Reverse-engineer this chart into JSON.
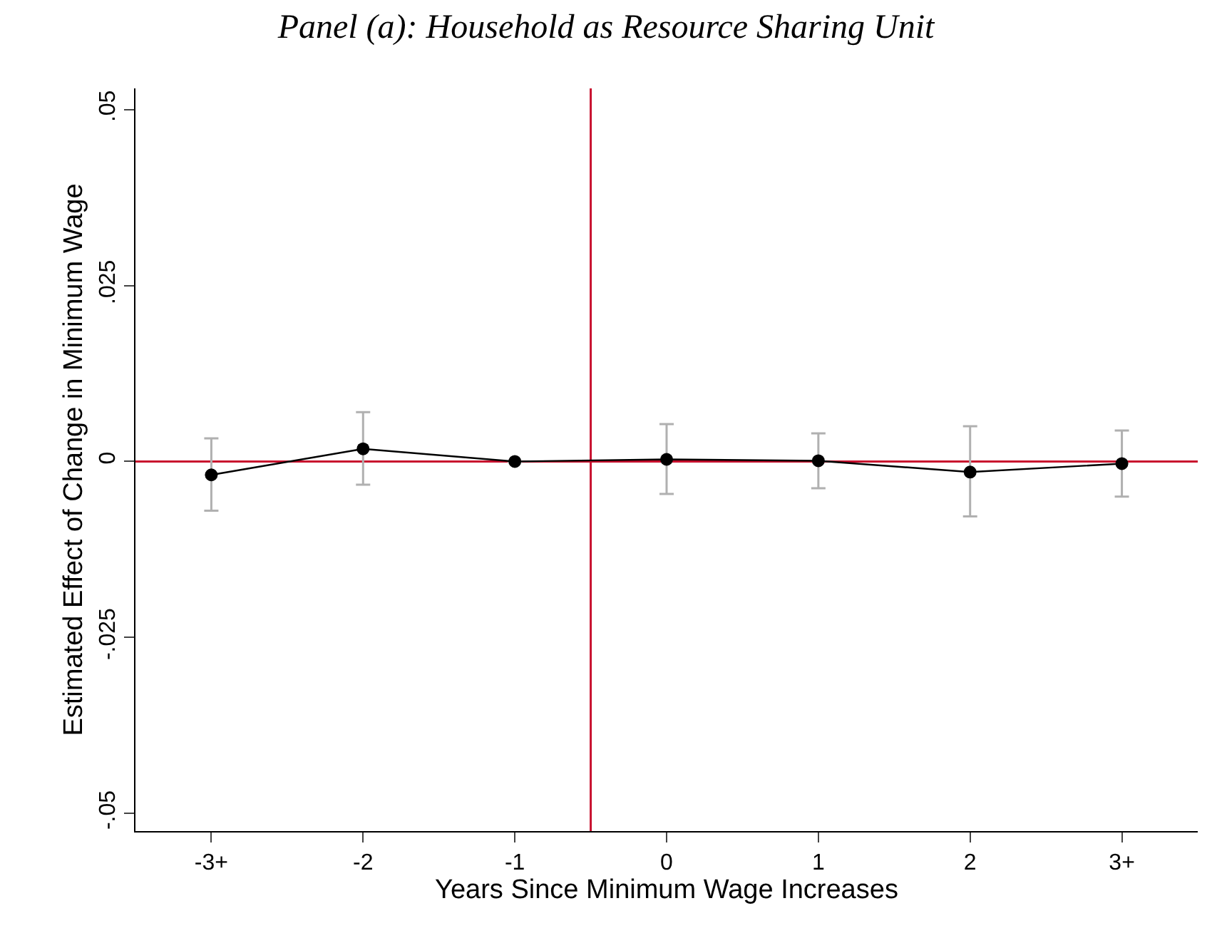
{
  "chart_data": {
    "type": "line",
    "title": "Panel (a): Household as Resource Sharing Unit",
    "xlabel": "Years Since Minimum Wage Increases",
    "ylabel": "Estimated Effect of Change in Minimum Wage",
    "x": [
      -3,
      -2,
      -1,
      0,
      1,
      2,
      3
    ],
    "series": [
      {
        "color": "#000000",
        "values": [
          -0.0019,
          0.0018,
          0,
          0.0003,
          0.0001,
          -0.0015,
          -0.0003
        ],
        "errors": [
          [
            -0.007,
            0.0033
          ],
          [
            -0.0033,
            0.007
          ],
          null,
          [
            -0.0046,
            0.0053
          ],
          [
            -0.0038,
            0.004
          ],
          [
            -0.0078,
            0.005
          ],
          [
            -0.005,
            0.0044
          ]
        ]
      }
    ],
    "marker": "circle",
    "line_style": "solid",
    "grid": false,
    "xlim": [
      -3.5,
      3.5
    ],
    "ylim": [
      -0.0525,
      0.053
    ],
    "xticks": [
      {
        "value": -3,
        "label": "-3+"
      },
      -2,
      -1,
      0,
      1,
      2,
      {
        "value": 3,
        "label": "3+"
      }
    ],
    "yticks": [
      {
        "value": -0.05,
        "label": "-.05"
      },
      {
        "value": -0.025,
        "label": "-.025"
      },
      0,
      {
        "value": 0.025,
        "label": ".025"
      },
      {
        "value": 0.05,
        "label": ".05"
      }
    ],
    "ref_lines": [
      {
        "axis": "x",
        "value": -0.5,
        "color": "#c8102e"
      },
      {
        "axis": "y",
        "value": 0,
        "color": "#c8102e"
      }
    ]
  }
}
